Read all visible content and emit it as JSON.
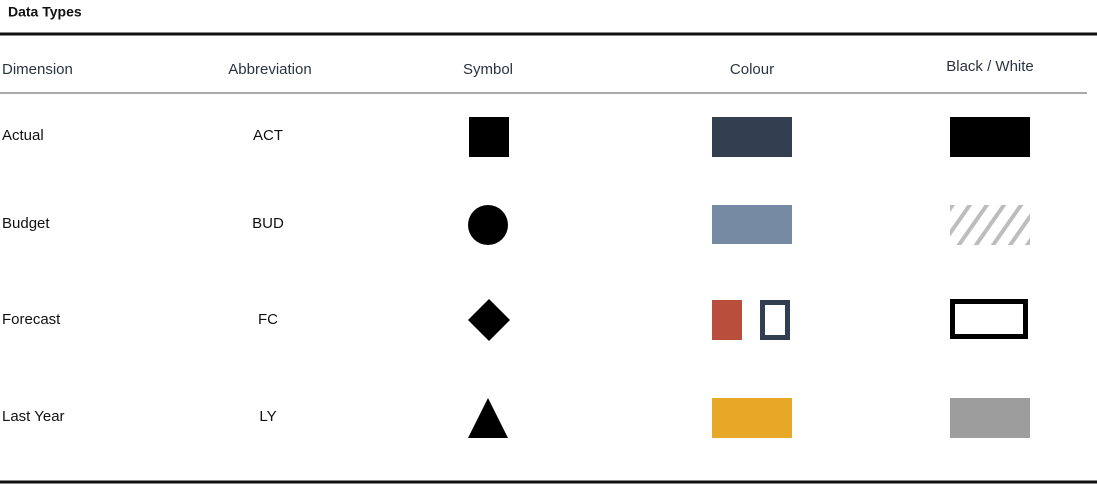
{
  "header": {
    "title": "Data Types"
  },
  "table": {
    "columns": [
      "Dimension",
      "Abbreviation",
      "Symbol",
      "Colour",
      "Black / White"
    ],
    "rows": [
      [
        "Actual",
        "ACT"
      ],
      [
        "Budget",
        "BUD"
      ],
      [
        "Forecast",
        "FC"
      ],
      [
        "Last Year",
        "LY"
      ]
    ]
  }
}
